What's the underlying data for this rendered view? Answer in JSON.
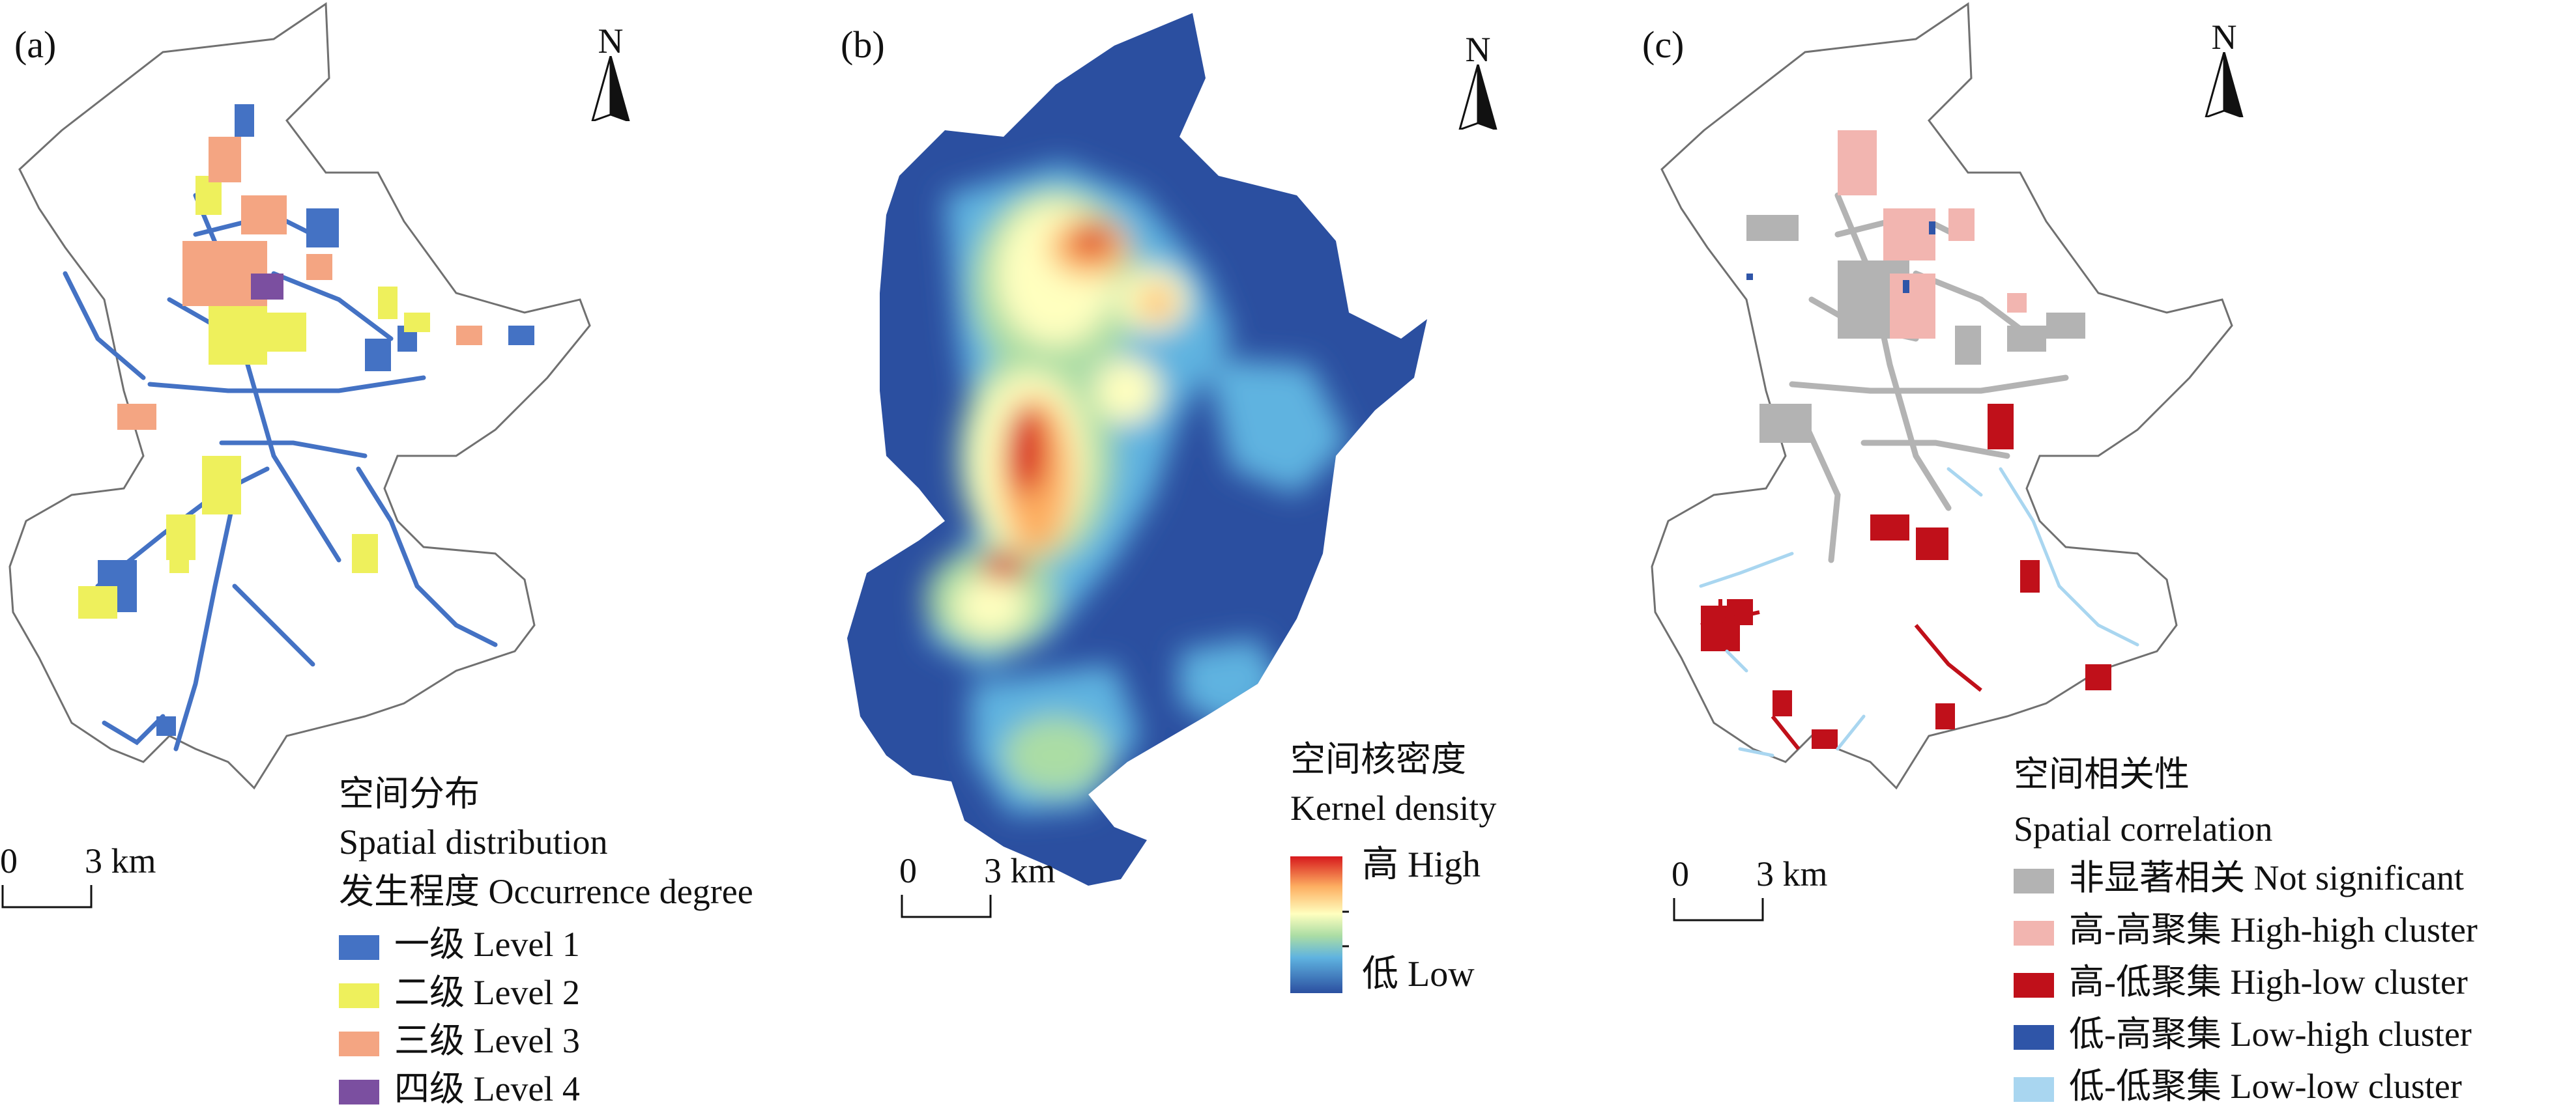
{
  "panels": [
    {
      "id": "a",
      "label": "(a)",
      "north_label": "N",
      "scale": {
        "zero": "0",
        "distance": "3 km"
      },
      "legend": {
        "title_cn": "空间分布",
        "title_en": "Spatial distribution",
        "subtitle": "发生程度 Occurrence degree",
        "items": [
          {
            "label": "一级 Level 1",
            "color": "#4472c4"
          },
          {
            "label": "二级 Level 2",
            "color": "#eef05c"
          },
          {
            "label": "三级 Level 3",
            "color": "#f4a582"
          },
          {
            "label": "四级 Level 4",
            "color": "#7b4fa0"
          }
        ]
      }
    },
    {
      "id": "b",
      "label": "(b)",
      "north_label": "N",
      "scale": {
        "zero": "0",
        "distance": "3 km"
      },
      "legend": {
        "title_cn": "空间核密度",
        "title_en": "Kernel density",
        "high": "高 High",
        "low": "低 Low",
        "ramp_colors": [
          "#d7191c",
          "#fdae61",
          "#ffffbf",
          "#abdda4",
          "#5fb3e0",
          "#2b4fa0"
        ]
      }
    },
    {
      "id": "c",
      "label": "(c)",
      "north_label": "N",
      "scale": {
        "zero": "0",
        "distance": "3 km"
      },
      "legend": {
        "title_cn": "空间相关性",
        "title_en": "Spatial correlation",
        "items": [
          {
            "label": "非显著相关 Not significant",
            "color": "#b3b3b3"
          },
          {
            "label": "高-高聚集 High-high cluster",
            "color": "#f2b5b0"
          },
          {
            "label": "高-低聚集 High-low cluster",
            "color": "#c0101a"
          },
          {
            "label": "低-高聚集 Low-high cluster",
            "color": "#2f55a8"
          },
          {
            "label": "低-低聚集 Low-low cluster",
            "color": "#a9d6f0"
          }
        ]
      }
    }
  ]
}
